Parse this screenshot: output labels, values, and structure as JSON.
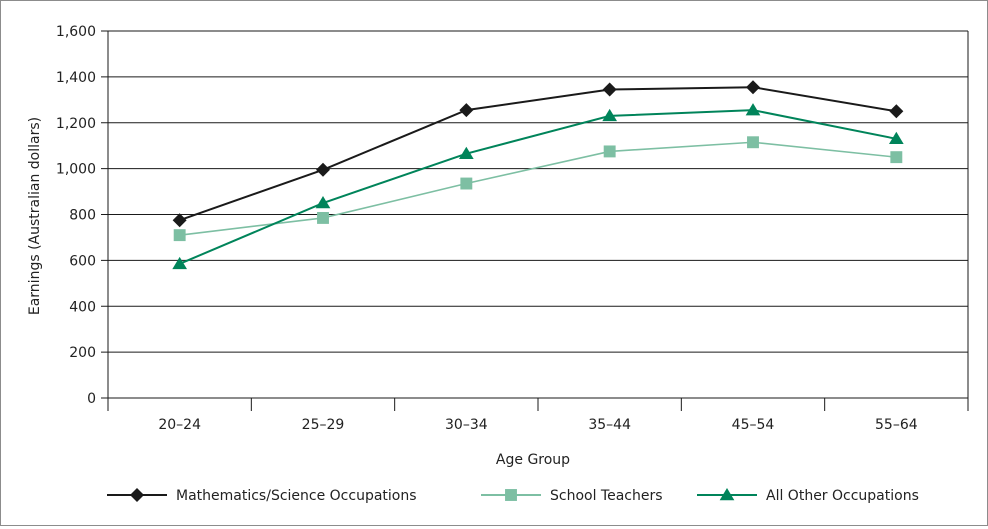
{
  "chart_data": {
    "type": "line",
    "title": "",
    "xlabel": "Age Group",
    "ylabel": "Earnings (Australian dollars)",
    "ylim": [
      0,
      1600
    ],
    "yticks": [
      0,
      200,
      400,
      600,
      800,
      1000,
      1200,
      1400,
      1600
    ],
    "ytick_labels": [
      "0",
      "200",
      "400",
      "600",
      "800",
      "1,000",
      "1,200",
      "1,400",
      "1,600"
    ],
    "categories": [
      "20–24",
      "25–29",
      "30–34",
      "35–44",
      "45–54",
      "55–64"
    ],
    "grid": true,
    "legend_position": "bottom",
    "series": [
      {
        "name": "Mathematics/Science Occupations",
        "marker": "diamond",
        "color": "#1a1a1a",
        "values": [
          775,
          995,
          1255,
          1345,
          1355,
          1250
        ]
      },
      {
        "name": "School Teachers",
        "marker": "square",
        "color": "#7dbfa3",
        "values": [
          710,
          785,
          935,
          1075,
          1115,
          1050
        ]
      },
      {
        "name": "All Other Occupations",
        "marker": "triangle",
        "color": "#00845a",
        "values": [
          585,
          850,
          1065,
          1230,
          1255,
          1130
        ]
      }
    ]
  }
}
